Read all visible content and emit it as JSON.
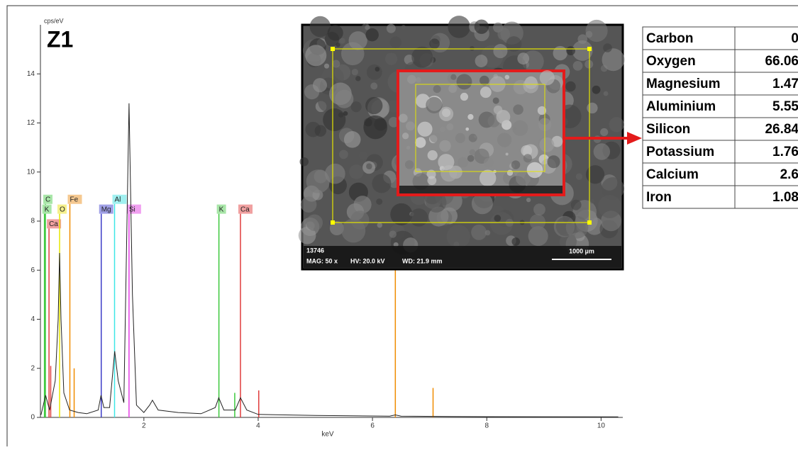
{
  "chart_data": {
    "type": "line",
    "title": "Z1",
    "ylabel": "cps/eV",
    "xlabel": "keV",
    "xlim": [
      0.19,
      10.38
    ],
    "ylim": [
      0,
      16
    ],
    "xticks": [
      2,
      4,
      6,
      8,
      10
    ],
    "yticks": [
      0,
      2,
      4,
      6,
      8,
      10,
      12,
      14
    ],
    "color": "#222222",
    "x": [
      0.2,
      0.28,
      0.35,
      0.45,
      0.5,
      0.525,
      0.55,
      0.6,
      0.7,
      0.85,
      1.0,
      1.2,
      1.25,
      1.3,
      1.4,
      1.49,
      1.55,
      1.65,
      1.74,
      1.8,
      1.87,
      2.0,
      2.1,
      2.15,
      2.25,
      2.6,
      3.0,
      3.25,
      3.31,
      3.4,
      3.6,
      3.69,
      3.8,
      4.0,
      5.0,
      6.3,
      6.4,
      6.5,
      8.0,
      10.3
    ],
    "y": [
      0.1,
      0.9,
      0.3,
      1.5,
      4,
      6.7,
      4,
      1,
      0.3,
      0.2,
      0.15,
      0.3,
      0.9,
      0.4,
      0.4,
      2.7,
      1.5,
      0.6,
      12.8,
      5,
      0.5,
      0.2,
      0.5,
      0.7,
      0.3,
      0.2,
      0.15,
      0.4,
      0.8,
      0.3,
      0.3,
      0.8,
      0.3,
      0.12,
      0.08,
      0.05,
      0.1,
      0.05,
      0.03,
      0.02
    ],
    "markers": [
      {
        "label": "C",
        "kev": 0.277,
        "height": 8.7,
        "color": "#3cc83c",
        "box": "#a8e6a8"
      },
      {
        "label": "K",
        "kev": 0.26,
        "height": 8.3,
        "color": "#3cc83c",
        "box": "#a8e6a8"
      },
      {
        "label": "Ca",
        "kev": 0.34,
        "height": 7.7,
        "color": "#e03c3c",
        "box": "#f0a0a0"
      },
      {
        "label": "O",
        "kev": 0.525,
        "height": 8.3,
        "color": "#e6e600",
        "box": "#f5f08c"
      },
      {
        "label": "Fe",
        "kev": 0.705,
        "height": 8.7,
        "color": "#f08c00",
        "box": "#f5c890"
      },
      {
        "label": "Mg",
        "kev": 1.254,
        "height": 8.3,
        "color": "#3c3cc8",
        "box": "#a0a0e6"
      },
      {
        "label": "Al",
        "kev": 1.487,
        "height": 8.7,
        "color": "#3ce6e6",
        "box": "#a0f0f0"
      },
      {
        "label": "Si",
        "kev": 1.74,
        "height": 8.3,
        "color": "#e63ce6",
        "box": "#f0a0f0"
      },
      {
        "label": "K",
        "kev": 3.313,
        "height": 8.3,
        "color": "#3cc83c",
        "box": "#a8e6a8"
      },
      {
        "label": "Ca",
        "kev": 3.69,
        "height": 8.3,
        "color": "#e03c3c",
        "box": "#f0a0a0"
      },
      {
        "label": null,
        "kev": 6.4,
        "height": 6.2,
        "color": "#f08c00",
        "box": null
      },
      {
        "label": null,
        "kev": 7.06,
        "height": 1.2,
        "color": "#f08c00",
        "box": null
      },
      {
        "label": null,
        "kev": 4.01,
        "height": 1.1,
        "color": "#e03c3c",
        "box": null
      },
      {
        "label": null,
        "kev": 3.59,
        "height": 1.0,
        "color": "#3cc83c",
        "box": null
      },
      {
        "label": null,
        "kev": 0.37,
        "height": 2.1,
        "color": "#e03c3c",
        "box": null
      },
      {
        "label": null,
        "kev": 0.78,
        "height": 2.0,
        "color": "#f08c00",
        "box": null
      }
    ]
  },
  "inset": {
    "id": "13746",
    "mag": "MAG: 50 x",
    "hv": "HV: 20.0 kV",
    "wd": "WD: 21.9 mm",
    "scale": "1000 µm"
  },
  "table": {
    "rows": [
      [
        "Carbon",
        0
      ],
      [
        "Oxygen",
        66.06
      ],
      [
        "Magnesium",
        1.47
      ],
      [
        "Aluminium",
        5.55
      ],
      [
        "Silicon",
        26.84
      ],
      [
        "Potassium",
        1.76
      ],
      [
        "Calcium",
        2.6
      ],
      [
        "Iron",
        1.08
      ]
    ]
  }
}
